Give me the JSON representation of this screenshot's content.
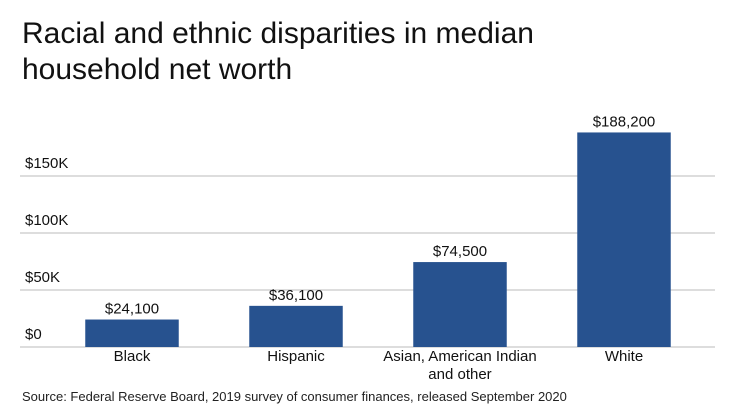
{
  "chart_data": {
    "type": "bar",
    "title": "Racial and ethnic disparities in median household net worth",
    "source": "Source: Federal Reserve Board, 2019 survey of consumer finances, released September 2020",
    "categories": [
      "Black",
      "Hispanic",
      "Asian, American Indian and other",
      "White"
    ],
    "values": [
      24100,
      36100,
      74500,
      188200
    ],
    "value_labels": [
      "$24,100",
      "$36,100",
      "$74,500",
      "$188,200"
    ],
    "color": "#27528f",
    "ylim": [
      0,
      200000
    ],
    "yticks": [
      {
        "value": 0,
        "label": "$0"
      },
      {
        "value": 50000,
        "label": "$50K"
      },
      {
        "value": 100000,
        "label": "$100K"
      },
      {
        "value": 150000,
        "label": "$150K"
      }
    ],
    "grid": true
  }
}
